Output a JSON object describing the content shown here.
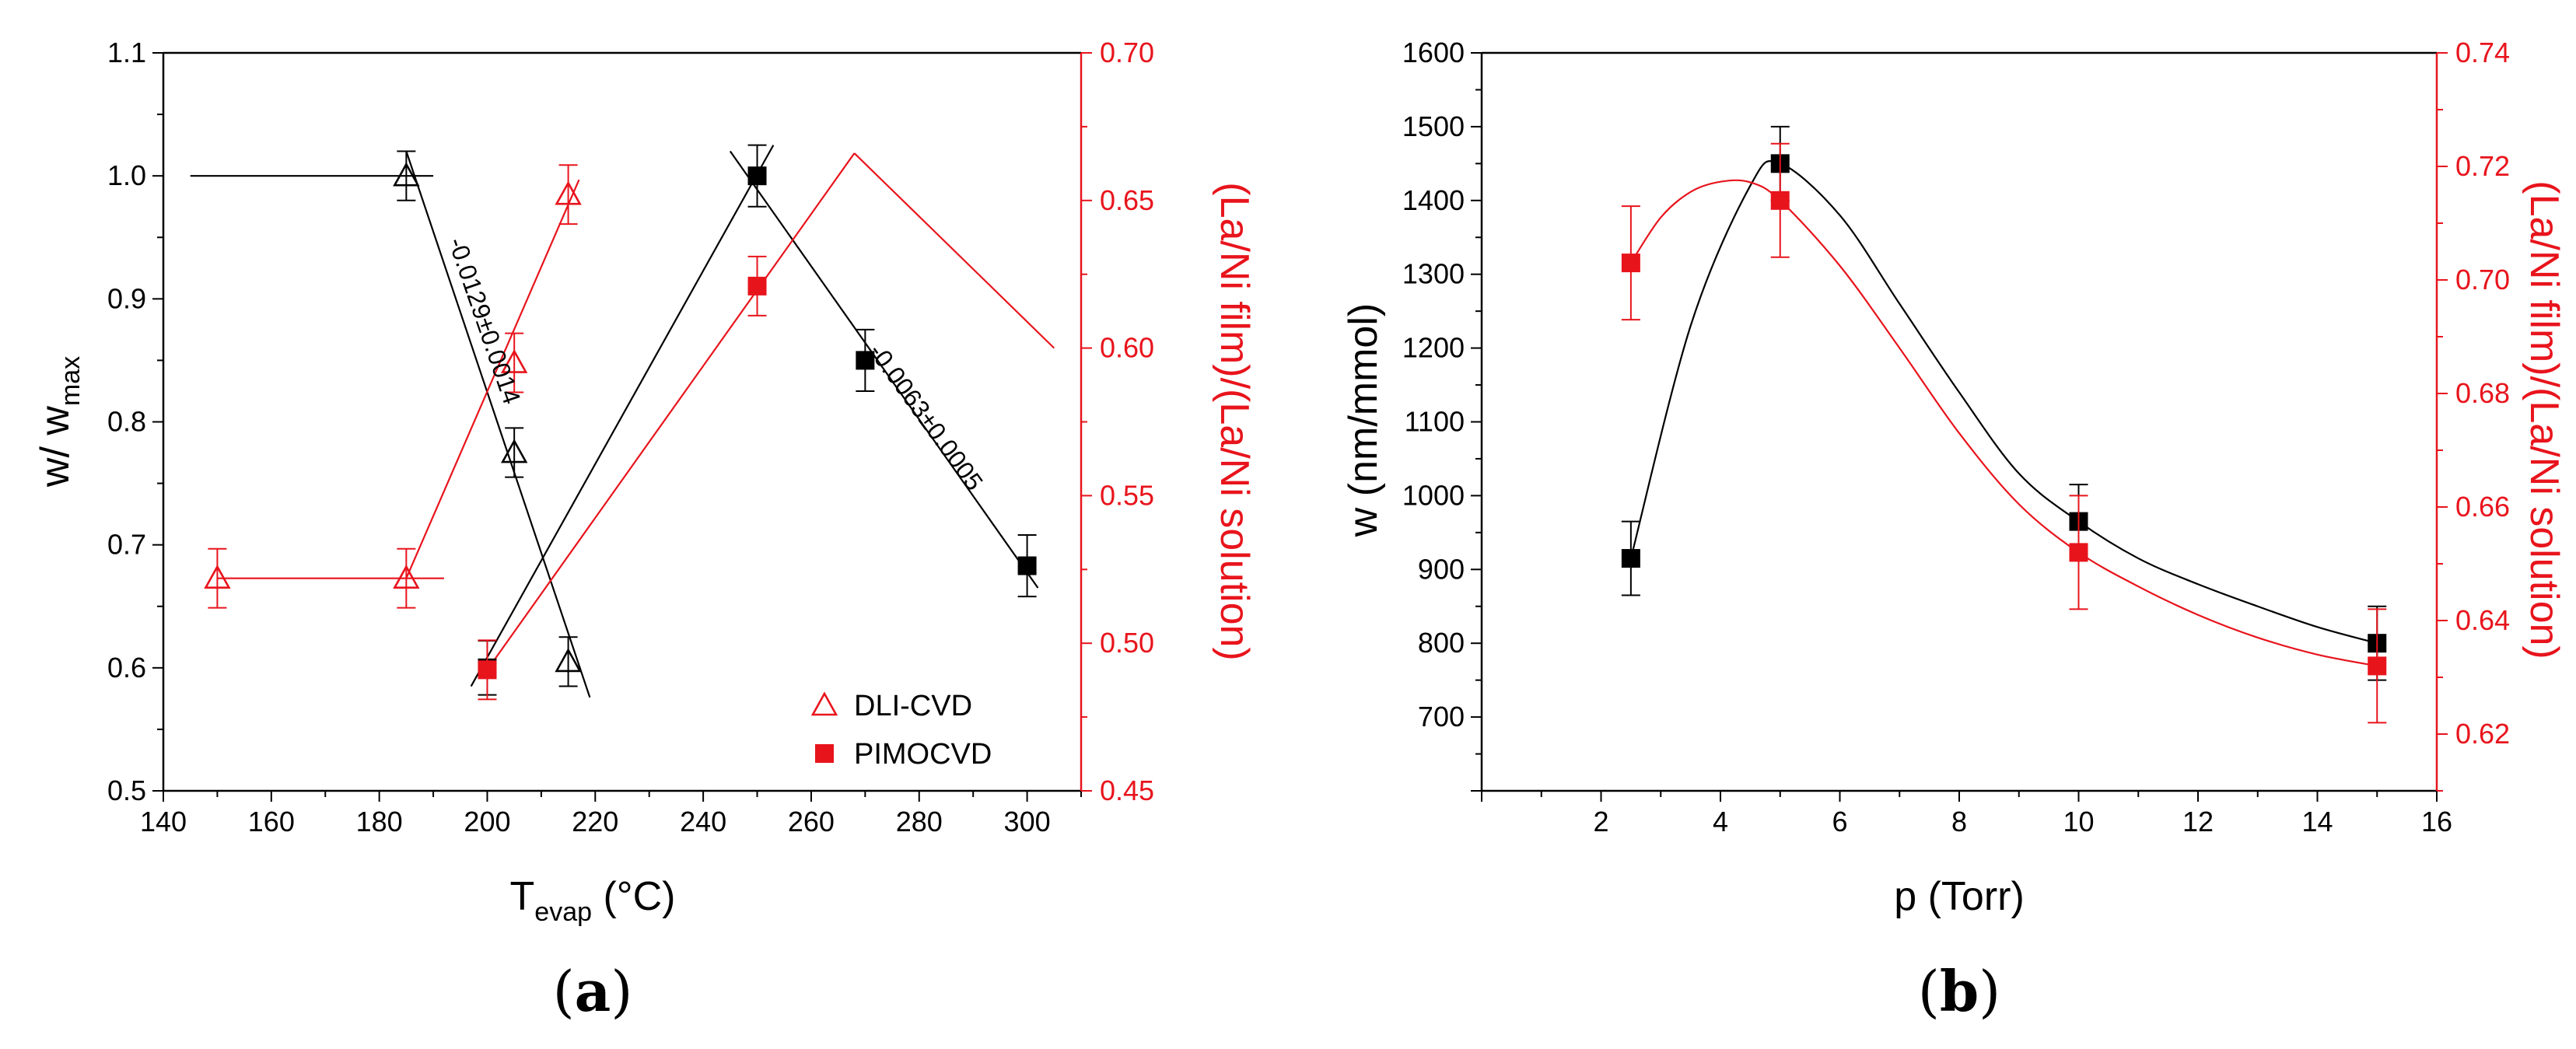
{
  "colors": {
    "black": "#000000",
    "red": "#e8141c"
  },
  "chart_data": [
    {
      "id": "a",
      "type": "scatter",
      "panel_label_open": "(",
      "panel_label_letter": "a",
      "panel_label_close": ")",
      "xlabel_main": "T",
      "xlabel_sub": "evap",
      "xlabel_unit": " (°C)",
      "ylabel_main": "w/ w",
      "ylabel_sub": "max",
      "y2label": "(La/Ni film)/(La/Ni solution)",
      "xlim": [
        140,
        310
      ],
      "ylim": [
        0.5,
        1.1
      ],
      "y2lim": [
        0.45,
        0.7
      ],
      "xticks": [
        140,
        160,
        180,
        200,
        220,
        240,
        260,
        280,
        300
      ],
      "yticks": [
        0.5,
        0.6,
        0.7,
        0.8,
        0.9,
        1.0,
        1.1
      ],
      "y2ticks": [
        0.45,
        0.5,
        0.55,
        0.6,
        0.65,
        0.7
      ],
      "series": [
        {
          "name": "DLI-CVD w/wmax",
          "axis": "left",
          "color": "black",
          "marker": "open-triangle",
          "x": [
            185,
            205,
            215
          ],
          "y": [
            1.0,
            0.775,
            0.605
          ],
          "err": [
            0.02,
            0.02,
            0.02
          ]
        },
        {
          "name": "DLI-CVD La/Ni",
          "axis": "right",
          "color": "red",
          "marker": "open-triangle",
          "x": [
            150,
            185,
            205,
            215
          ],
          "y": [
            0.522,
            0.522,
            0.595,
            0.652
          ],
          "err": [
            0.01,
            0.01,
            0.01,
            0.01
          ]
        },
        {
          "name": "PIMOCVD w/wmax",
          "axis": "left",
          "color": "black",
          "marker": "filled-square",
          "x": [
            200,
            250,
            270,
            300
          ],
          "y": [
            0.6,
            1.0,
            0.85,
            0.683
          ],
          "err": [
            0.022,
            0.025,
            0.025,
            0.025
          ]
        },
        {
          "name": "PIMOCVD La/Ni",
          "axis": "right",
          "color": "red",
          "marker": "filled-square",
          "x": [
            200,
            250
          ],
          "y": [
            0.491,
            0.621
          ],
          "err": [
            0.01,
            0.01
          ]
        }
      ],
      "fit_lines": [
        {
          "axis": "left",
          "color": "black",
          "x": [
            145,
            190
          ],
          "y": [
            1.0,
            1.0
          ]
        },
        {
          "axis": "left",
          "color": "black",
          "x": [
            185,
            219
          ],
          "y": [
            1.02,
            0.576
          ]
        },
        {
          "axis": "left",
          "color": "black",
          "x": [
            197,
            253
          ],
          "y": [
            0.585,
            1.025
          ]
        },
        {
          "axis": "left",
          "color": "black",
          "x": [
            245,
            302
          ],
          "y": [
            1.02,
            0.665
          ]
        },
        {
          "axis": "right",
          "color": "red",
          "x": [
            150,
            192
          ],
          "y": [
            0.522,
            0.522
          ]
        },
        {
          "axis": "right",
          "color": "red",
          "x": [
            185,
            217
          ],
          "y": [
            0.522,
            0.657
          ]
        },
        {
          "axis": "right",
          "color": "red",
          "x": [
            200,
            268
          ],
          "y": [
            0.491,
            0.666
          ]
        },
        {
          "axis": "right",
          "color": "red",
          "x": [
            268,
            305
          ],
          "y": [
            0.666,
            0.6
          ]
        }
      ],
      "annotations": [
        {
          "text": "-0.0129±0.0014",
          "x": 198,
          "y": 0.88,
          "axis": "left",
          "angle": 71
        },
        {
          "text": "-0.0063±0.0005",
          "x": 280,
          "y": 0.8,
          "axis": "left",
          "angle": 54
        }
      ],
      "legend": [
        {
          "label": "DLI-CVD",
          "marker": "open-triangle",
          "color": "red"
        },
        {
          "label": "PIMOCVD",
          "marker": "filled-square",
          "color": "red"
        }
      ],
      "legend_position": "bottom-right"
    },
    {
      "id": "b",
      "type": "scatter",
      "panel_label_open": "(",
      "panel_label_letter": "b",
      "panel_label_close": ")",
      "xlabel": "p (Torr)",
      "ylabel": "w (nm/mmol)",
      "y2label": "(La/Ni film)/(La/Ni solution)",
      "xlim": [
        0,
        16
      ],
      "ylim": [
        600,
        1600
      ],
      "y2lim": [
        0.61,
        0.74
      ],
      "xticks": [
        2,
        4,
        6,
        8,
        10,
        12,
        14,
        16
      ],
      "yticks": [
        700,
        800,
        900,
        1000,
        1100,
        1200,
        1300,
        1400,
        1500,
        1600
      ],
      "y2ticks": [
        0.62,
        0.64,
        0.66,
        0.68,
        0.7,
        0.72,
        0.74
      ],
      "series": [
        {
          "name": "w",
          "axis": "left",
          "color": "black",
          "marker": "filled-square",
          "x": [
            2.5,
            5,
            10,
            15
          ],
          "y": [
            915,
            1450,
            965,
            800
          ],
          "err": [
            50,
            50,
            50,
            50
          ]
        },
        {
          "name": "La/Ni ratio",
          "axis": "right",
          "color": "red",
          "marker": "filled-square",
          "x": [
            2.5,
            5,
            10,
            15
          ],
          "y": [
            0.703,
            0.714,
            0.652,
            0.632
          ],
          "err": [
            0.01,
            0.01,
            0.01,
            0.01
          ]
        }
      ],
      "smooth_curves": [
        {
          "axis": "left",
          "color": "black",
          "x": [
            2.5,
            3.5,
            4.5,
            5,
            6,
            7,
            8,
            9,
            10,
            11,
            12,
            13,
            14,
            15
          ],
          "y": [
            915,
            1230,
            1420,
            1450,
            1380,
            1260,
            1140,
            1030,
            965,
            915,
            880,
            850,
            822,
            800
          ]
        },
        {
          "axis": "right",
          "color": "red",
          "x": [
            2.5,
            3,
            3.5,
            4,
            4.5,
            5,
            6,
            7,
            8,
            9,
            10,
            11,
            12,
            13,
            14,
            15
          ],
          "y": [
            0.703,
            0.711,
            0.7155,
            0.7173,
            0.7172,
            0.714,
            0.7025,
            0.688,
            0.673,
            0.6605,
            0.652,
            0.646,
            0.641,
            0.637,
            0.634,
            0.632
          ]
        }
      ]
    }
  ]
}
